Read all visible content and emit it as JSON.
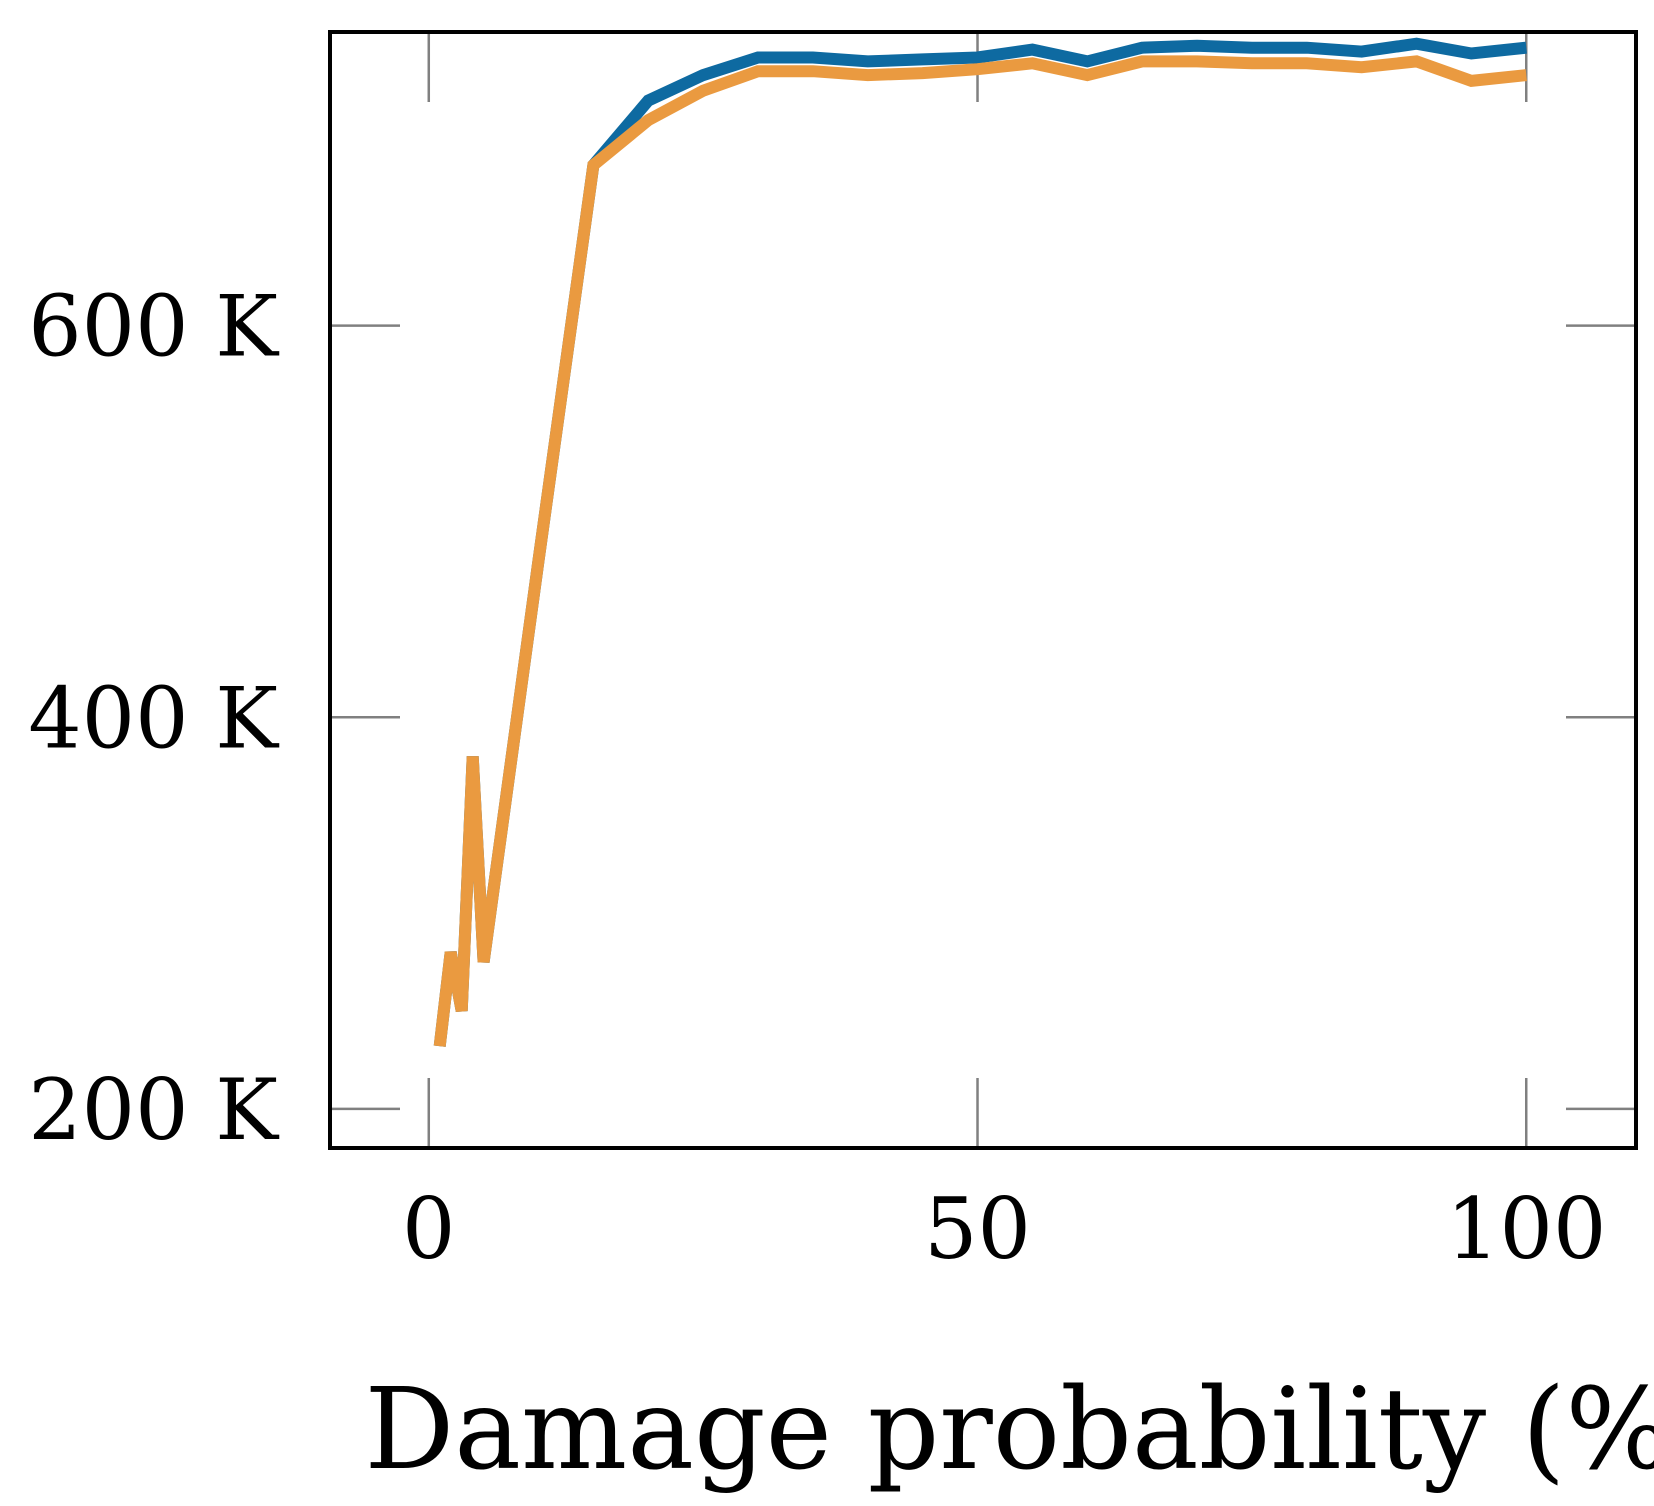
{
  "chart_data": {
    "type": "line",
    "title": "",
    "xlabel": "Damage probability (%)",
    "ylabel": "",
    "xlim": [
      -9,
      110
    ],
    "ylim": [
      180000,
      750000
    ],
    "x_ticks": [
      0,
      50,
      100
    ],
    "x_tick_labels": [
      "0",
      "50",
      "100"
    ],
    "y_ticks": [
      200000,
      400000,
      600000
    ],
    "y_tick_labels": [
      "200 K",
      "400 K",
      "600 K"
    ],
    "grid": false,
    "legend": null,
    "series": [
      {
        "name": "series-blue",
        "color": "#0e6aa1",
        "x": [
          1,
          2,
          3,
          4,
          5,
          10,
          15,
          20,
          25,
          30,
          35,
          40,
          45,
          50,
          55,
          60,
          65,
          70,
          75,
          80,
          85,
          90,
          95,
          100
        ],
        "y": [
          232000,
          280000,
          250000,
          380000,
          275000,
          480000,
          682000,
          715000,
          728000,
          737000,
          737000,
          735000,
          736000,
          737000,
          741000,
          735000,
          742000,
          743000,
          742000,
          742000,
          740000,
          744000,
          739000,
          742000
        ]
      },
      {
        "name": "series-orange",
        "color": "#ea9a40",
        "x": [
          1,
          2,
          3,
          4,
          5,
          10,
          15,
          20,
          25,
          30,
          35,
          40,
          45,
          50,
          55,
          60,
          65,
          70,
          75,
          80,
          85,
          90,
          95,
          100
        ],
        "y": [
          232000,
          280000,
          250000,
          380000,
          275000,
          480000,
          682000,
          705000,
          720000,
          730000,
          730000,
          728000,
          729000,
          731000,
          734000,
          728000,
          735000,
          735000,
          734000,
          734000,
          732000,
          735000,
          725000,
          728000
        ]
      }
    ]
  }
}
